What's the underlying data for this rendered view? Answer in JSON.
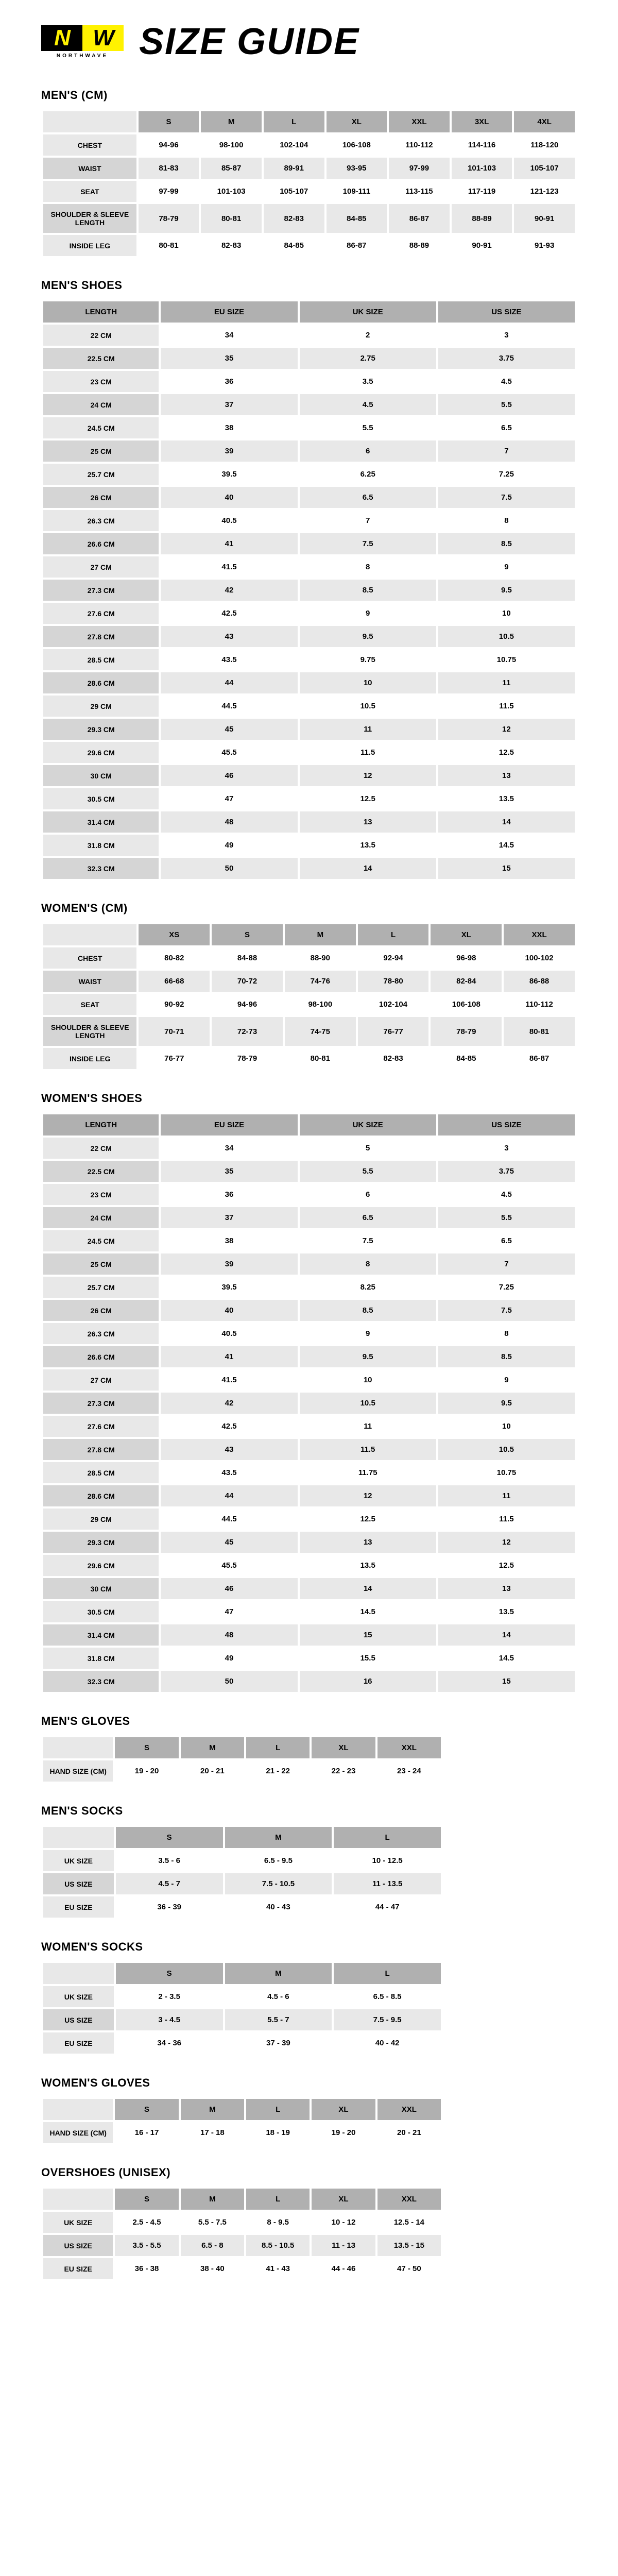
{
  "logo": {
    "n": "N",
    "w": "W",
    "sub": "NORTHWAVE"
  },
  "title": "SIZE GUIDE",
  "mensCm": {
    "title": "MEN'S (CM)",
    "sizes": [
      "S",
      "M",
      "L",
      "XL",
      "XXL",
      "3XL",
      "4XL"
    ],
    "rows": [
      {
        "label": "CHEST",
        "v": [
          "94-96",
          "98-100",
          "102-104",
          "106-108",
          "110-112",
          "114-116",
          "118-120"
        ]
      },
      {
        "label": "WAIST",
        "v": [
          "81-83",
          "85-87",
          "89-91",
          "93-95",
          "97-99",
          "101-103",
          "105-107"
        ]
      },
      {
        "label": "SEAT",
        "v": [
          "97-99",
          "101-103",
          "105-107",
          "109-111",
          "113-115",
          "117-119",
          "121-123"
        ]
      },
      {
        "label": "SHOULDER & SLEEVE LENGTH",
        "v": [
          "78-79",
          "80-81",
          "82-83",
          "84-85",
          "86-87",
          "88-89",
          "90-91"
        ]
      },
      {
        "label": "INSIDE LEG",
        "v": [
          "80-81",
          "82-83",
          "84-85",
          "86-87",
          "88-89",
          "90-91",
          "91-93"
        ]
      }
    ]
  },
  "mensShoes": {
    "title": "MEN'S SHOES",
    "headers": [
      "LENGTH",
      "EU SIZE",
      "UK SIZE",
      "US SIZE"
    ],
    "rows": [
      [
        "22 CM",
        "34",
        "2",
        "3"
      ],
      [
        "22.5 CM",
        "35",
        "2.75",
        "3.75"
      ],
      [
        "23 CM",
        "36",
        "3.5",
        "4.5"
      ],
      [
        "24 CM",
        "37",
        "4.5",
        "5.5"
      ],
      [
        "24.5 CM",
        "38",
        "5.5",
        "6.5"
      ],
      [
        "25 CM",
        "39",
        "6",
        "7"
      ],
      [
        "25.7 CM",
        "39.5",
        "6.25",
        "7.25"
      ],
      [
        "26 CM",
        "40",
        "6.5",
        "7.5"
      ],
      [
        "26.3 CM",
        "40.5",
        "7",
        "8"
      ],
      [
        "26.6 CM",
        "41",
        "7.5",
        "8.5"
      ],
      [
        "27 CM",
        "41.5",
        "8",
        "9"
      ],
      [
        "27.3 CM",
        "42",
        "8.5",
        "9.5"
      ],
      [
        "27.6 CM",
        "42.5",
        "9",
        "10"
      ],
      [
        "27.8 CM",
        "43",
        "9.5",
        "10.5"
      ],
      [
        "28.5 CM",
        "43.5",
        "9.75",
        "10.75"
      ],
      [
        "28.6 CM",
        "44",
        "10",
        "11"
      ],
      [
        "29 CM",
        "44.5",
        "10.5",
        "11.5"
      ],
      [
        "29.3 CM",
        "45",
        "11",
        "12"
      ],
      [
        "29.6 CM",
        "45.5",
        "11.5",
        "12.5"
      ],
      [
        "30 CM",
        "46",
        "12",
        "13"
      ],
      [
        "30.5 CM",
        "47",
        "12.5",
        "13.5"
      ],
      [
        "31.4 CM",
        "48",
        "13",
        "14"
      ],
      [
        "31.8 CM",
        "49",
        "13.5",
        "14.5"
      ],
      [
        "32.3 CM",
        "50",
        "14",
        "15"
      ]
    ]
  },
  "womensCm": {
    "title": "WOMEN'S (CM)",
    "sizes": [
      "XS",
      "S",
      "M",
      "L",
      "XL",
      "XXL"
    ],
    "rows": [
      {
        "label": "CHEST",
        "v": [
          "80-82",
          "84-88",
          "88-90",
          "92-94",
          "96-98",
          "100-102"
        ]
      },
      {
        "label": "WAIST",
        "v": [
          "66-68",
          "70-72",
          "74-76",
          "78-80",
          "82-84",
          "86-88"
        ]
      },
      {
        "label": "SEAT",
        "v": [
          "90-92",
          "94-96",
          "98-100",
          "102-104",
          "106-108",
          "110-112"
        ]
      },
      {
        "label": "SHOULDER & SLEEVE LENGTH",
        "v": [
          "70-71",
          "72-73",
          "74-75",
          "76-77",
          "78-79",
          "80-81"
        ]
      },
      {
        "label": "INSIDE LEG",
        "v": [
          "76-77",
          "78-79",
          "80-81",
          "82-83",
          "84-85",
          "86-87"
        ]
      }
    ]
  },
  "womensShoes": {
    "title": "WOMEN'S SHOES",
    "headers": [
      "LENGTH",
      "EU SIZE",
      "UK SIZE",
      "US SIZE"
    ],
    "rows": [
      [
        "22 CM",
        "34",
        "5",
        "3"
      ],
      [
        "22.5 CM",
        "35",
        "5.5",
        "3.75"
      ],
      [
        "23 CM",
        "36",
        "6",
        "4.5"
      ],
      [
        "24 CM",
        "37",
        "6.5",
        "5.5"
      ],
      [
        "24.5 CM",
        "38",
        "7.5",
        "6.5"
      ],
      [
        "25 CM",
        "39",
        "8",
        "7"
      ],
      [
        "25.7 CM",
        "39.5",
        "8.25",
        "7.25"
      ],
      [
        "26 CM",
        "40",
        "8.5",
        "7.5"
      ],
      [
        "26.3 CM",
        "40.5",
        "9",
        "8"
      ],
      [
        "26.6 CM",
        "41",
        "9.5",
        "8.5"
      ],
      [
        "27 CM",
        "41.5",
        "10",
        "9"
      ],
      [
        "27.3 CM",
        "42",
        "10.5",
        "9.5"
      ],
      [
        "27.6 CM",
        "42.5",
        "11",
        "10"
      ],
      [
        "27.8 CM",
        "43",
        "11.5",
        "10.5"
      ],
      [
        "28.5 CM",
        "43.5",
        "11.75",
        "10.75"
      ],
      [
        "28.6 CM",
        "44",
        "12",
        "11"
      ],
      [
        "29 CM",
        "44.5",
        "12.5",
        "11.5"
      ],
      [
        "29.3 CM",
        "45",
        "13",
        "12"
      ],
      [
        "29.6 CM",
        "45.5",
        "13.5",
        "12.5"
      ],
      [
        "30 CM",
        "46",
        "14",
        "13"
      ],
      [
        "30.5 CM",
        "47",
        "14.5",
        "13.5"
      ],
      [
        "31.4 CM",
        "48",
        "15",
        "14"
      ],
      [
        "31.8 CM",
        "49",
        "15.5",
        "14.5"
      ],
      [
        "32.3 CM",
        "50",
        "16",
        "15"
      ]
    ]
  },
  "mensGloves": {
    "title": "MEN'S GLOVES",
    "sizes": [
      "S",
      "M",
      "L",
      "XL",
      "XXL"
    ],
    "rows": [
      {
        "label": "HAND SIZE (CM)",
        "v": [
          "19 - 20",
          "20 - 21",
          "21 - 22",
          "22 - 23",
          "23 - 24"
        ]
      }
    ]
  },
  "mensSocks": {
    "title": "MEN'S SOCKS",
    "sizes": [
      "S",
      "M",
      "L"
    ],
    "rows": [
      {
        "label": "UK SIZE",
        "v": [
          "3.5 - 6",
          "6.5 - 9.5",
          "10 - 12.5"
        ]
      },
      {
        "label": "US SIZE",
        "v": [
          "4.5 - 7",
          "7.5 - 10.5",
          "11 - 13.5"
        ]
      },
      {
        "label": "EU SIZE",
        "v": [
          "36 - 39",
          "40 - 43",
          "44 - 47"
        ]
      }
    ]
  },
  "womensSocks": {
    "title": "WOMEN'S SOCKS",
    "sizes": [
      "S",
      "M",
      "L"
    ],
    "rows": [
      {
        "label": "UK SIZE",
        "v": [
          "2 - 3.5",
          "4.5 - 6",
          "6.5 - 8.5"
        ]
      },
      {
        "label": "US SIZE",
        "v": [
          "3 - 4.5",
          "5.5 - 7",
          "7.5 - 9.5"
        ]
      },
      {
        "label": "EU SIZE",
        "v": [
          "34 - 36",
          "37 - 39",
          "40 - 42"
        ]
      }
    ]
  },
  "womensGloves": {
    "title": "WOMEN'S GLOVES",
    "sizes": [
      "S",
      "M",
      "L",
      "XL",
      "XXL"
    ],
    "rows": [
      {
        "label": "HAND SIZE (CM)",
        "v": [
          "16 - 17",
          "17 - 18",
          "18 - 19",
          "19 - 20",
          "20 - 21"
        ]
      }
    ]
  },
  "overshoes": {
    "title": "OVERSHOES (UNISEX)",
    "sizes": [
      "S",
      "M",
      "L",
      "XL",
      "XXL"
    ],
    "rows": [
      {
        "label": "UK SIZE",
        "v": [
          "2.5 - 4.5",
          "5.5 - 7.5",
          "8 - 9.5",
          "10 - 12",
          "12.5 - 14"
        ]
      },
      {
        "label": "US SIZE",
        "v": [
          "3.5 - 5.5",
          "6.5 - 8",
          "8.5 - 10.5",
          "11 - 13",
          "13.5 - 15"
        ]
      },
      {
        "label": "EU SIZE",
        "v": [
          "36 - 38",
          "38 - 40",
          "41 - 43",
          "44 - 46",
          "47 - 50"
        ]
      }
    ]
  }
}
